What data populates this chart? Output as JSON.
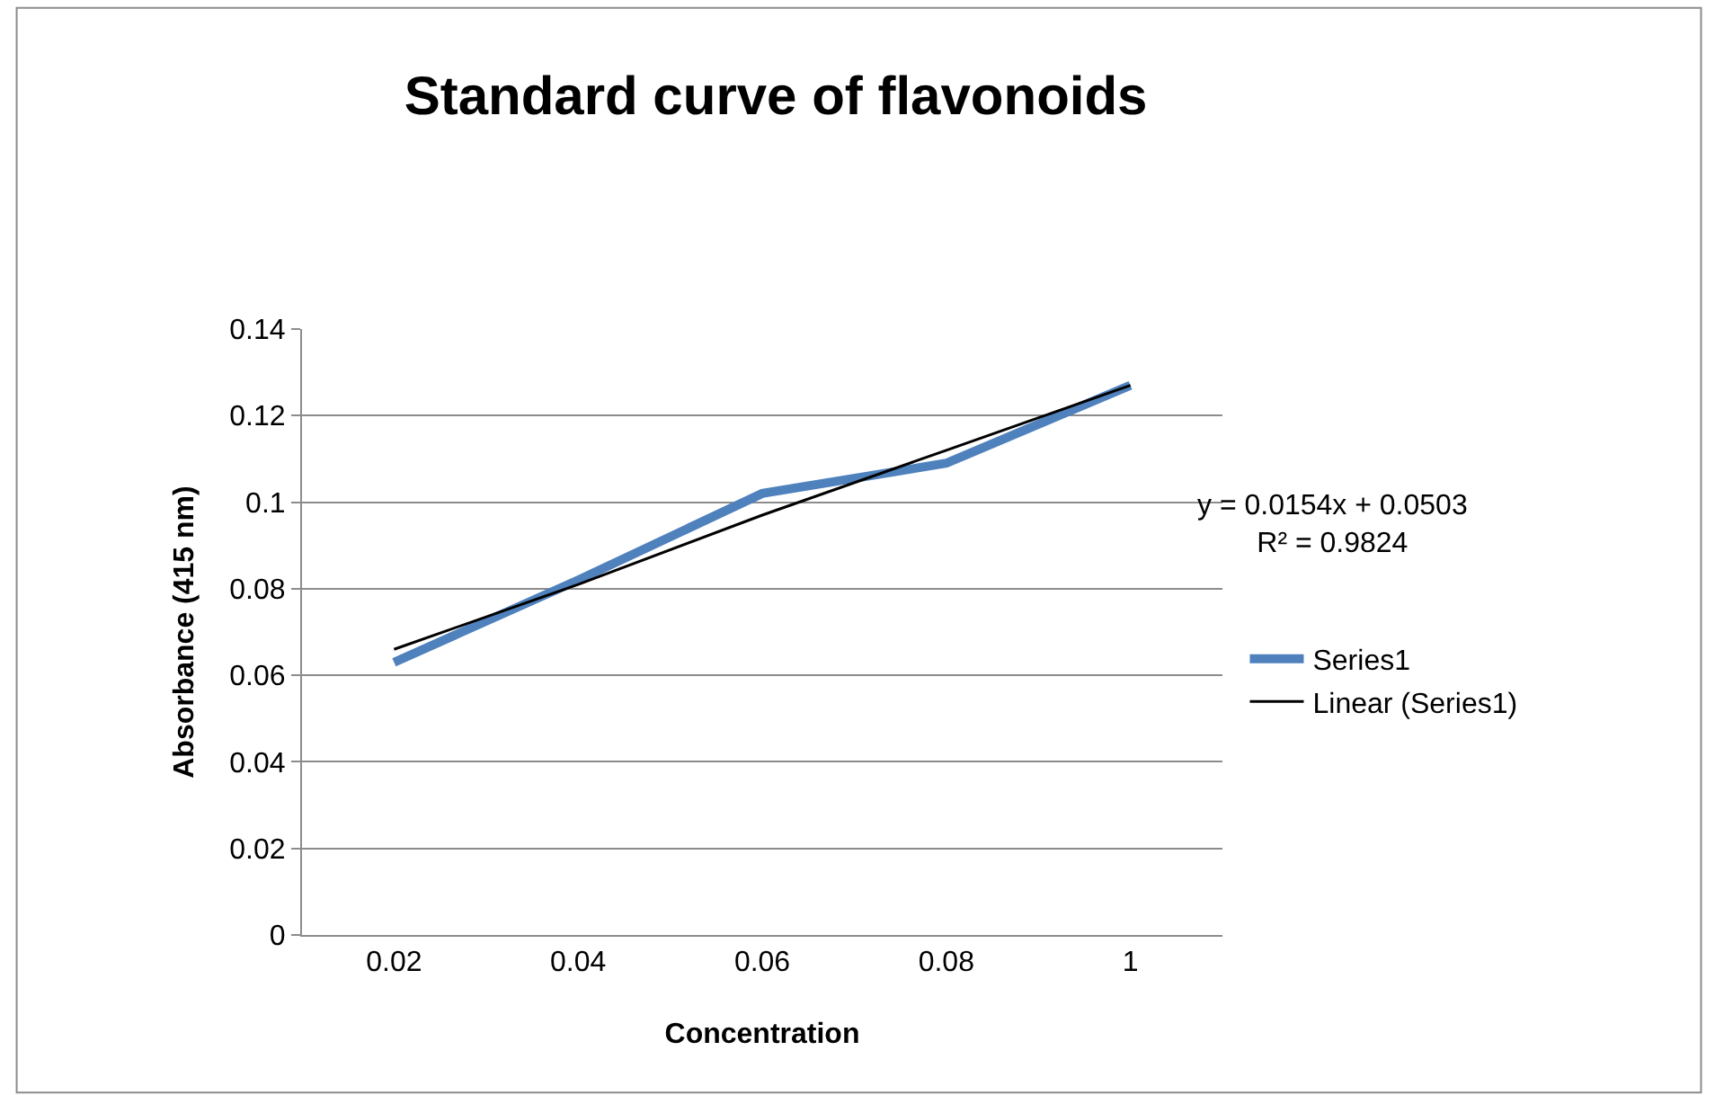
{
  "chart_data": {
    "type": "line",
    "title": "Standard curve of flavonoids",
    "xlabel": "Concentration",
    "ylabel": "Absorbance (415 nm)",
    "categories": [
      "0.02",
      "0.04",
      "0.06",
      "0.08",
      "1"
    ],
    "series": [
      {
        "name": "Series1",
        "color": "#4f81bd",
        "values": [
          0.063,
          0.082,
          0.102,
          0.109,
          0.127
        ]
      },
      {
        "name": "Linear (Series1)",
        "color": "#000000",
        "values": [
          0.066,
          0.081,
          0.097,
          0.112,
          0.127
        ]
      }
    ],
    "ylim": [
      0,
      0.14
    ],
    "yticks": [
      0,
      0.02,
      0.04,
      0.06,
      0.08,
      0.1,
      0.12,
      0.14
    ],
    "annotations": [
      "y = 0.0154x + 0.0503\nR² = 0.9824"
    ],
    "grid": "y",
    "legend": "right",
    "marker": "none"
  }
}
